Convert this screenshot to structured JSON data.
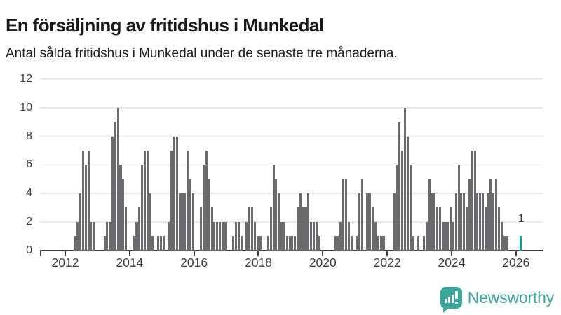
{
  "header": {
    "title": "En försäljning av fritidshus i Munkedal",
    "subtitle": "Antal sålda fritidshus i Munkedal under de senaste tre månaderna."
  },
  "chart_data": {
    "type": "bar",
    "title": "En försäljning av fritidshus i Munkedal",
    "subtitle": "Antal sålda fritidshus i Munkedal under de senaste tre månaderna.",
    "frequency": "monthly",
    "start_month": "2012-04",
    "end_month": "2026-02",
    "values": [
      1,
      2,
      4,
      7,
      6,
      7,
      2,
      2,
      0,
      0,
      0,
      1,
      2,
      2,
      8,
      9,
      10,
      6,
      5,
      3,
      0,
      0,
      1,
      2,
      3,
      6,
      7,
      7,
      4,
      1,
      0,
      1,
      1,
      1,
      0,
      2,
      7,
      8,
      8,
      4,
      4,
      4,
      7,
      5,
      4,
      0,
      0,
      3,
      6,
      7,
      5,
      3,
      2,
      2,
      2,
      2,
      2,
      0,
      0,
      1,
      2,
      2,
      1,
      0,
      2,
      3,
      3,
      2,
      1,
      1,
      0,
      0,
      1,
      3,
      6,
      5,
      4,
      2,
      2,
      1,
      1,
      1,
      1,
      3,
      4,
      3,
      3,
      4,
      2,
      2,
      2,
      1,
      0,
      0,
      0,
      0,
      0,
      1,
      1,
      2,
      5,
      5,
      2,
      1,
      0,
      1,
      4,
      5,
      0,
      4,
      4,
      3,
      2,
      1,
      1,
      1,
      0,
      0,
      0,
      4,
      6,
      9,
      7,
      10,
      8,
      6,
      1,
      0,
      1,
      0,
      1,
      2,
      5,
      4,
      4,
      3,
      3,
      2,
      2,
      2,
      3,
      2,
      4,
      6,
      4,
      4,
      3,
      5,
      7,
      7,
      4,
      4,
      4,
      3,
      4,
      5,
      4,
      5,
      3,
      2,
      1,
      1,
      0,
      0,
      0,
      0,
      1
    ],
    "highlight_last": true,
    "last_value_label": "1",
    "ylim": [
      0,
      12
    ],
    "yticks": [
      0,
      2,
      4,
      6,
      8,
      10,
      12
    ],
    "x_tick_labels": [
      "2012",
      "2014",
      "2016",
      "2018",
      "2020",
      "2022",
      "2024",
      "2026"
    ],
    "grid": "horizontal",
    "legend": "none",
    "bar_color": "#69696e",
    "accent_color": "#00a096"
  },
  "annotation": {
    "last_point_label": "1"
  },
  "footer": {
    "brand": "Newsworthy",
    "brand_color": "#3ba49b",
    "logo_icon": "bar-chart-speech-bubble-icon"
  }
}
